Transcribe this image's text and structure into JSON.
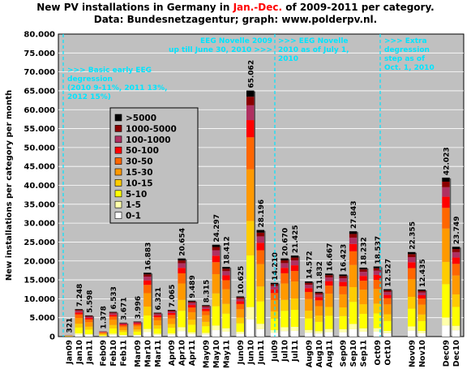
{
  "title": {
    "part1": "New PV installations in Germany in ",
    "part2": "Jan.-Dec.",
    "part3": " of 2009-2011 per category.",
    "line2": "Data: Bundesnetzagentur; graph: www.polderpv.nl."
  },
  "chart_data": {
    "type": "bar",
    "stacked": true,
    "ylabel": "New installations per category per month",
    "ylim": [
      0,
      80000
    ],
    "yticks": [
      "0",
      "5.000",
      "10.000",
      "15.000",
      "20.000",
      "25.000",
      "30.000",
      "35.000",
      "40.000",
      "45.000",
      "50.000",
      "55.000",
      "60.000",
      "65.000",
      "70.000",
      "75.000",
      "80.000"
    ],
    "legend_position": "left-middle",
    "categories_order": [
      "0-1",
      "1-5",
      "5-10",
      "10-15",
      "15-30",
      "30-50",
      "50-100",
      "100-1000",
      "1000-5000",
      ">5000"
    ],
    "legend": [
      ">5000",
      "1000-5000",
      "100-1000",
      "50-100",
      "30-50",
      "15-30",
      "10-15",
      "5-10",
      "1-5",
      "0-1"
    ],
    "colors": {
      ">5000": "#000000",
      "1000-5000": "#8b0000",
      "100-1000": "#b03060",
      "50-100": "#ff0000",
      "30-50": "#ff6600",
      "15-30": "#ff9900",
      "10-15": "#ffcc00",
      "5-10": "#ffff00",
      "1-5": "#ffffaa",
      "0-1": "#ffffff"
    },
    "groups": [
      {
        "month": "Jan",
        "labels": [
          "Jan09",
          "Jan10",
          "Jan11"
        ],
        "totals": [
          321,
          7248,
          5598
        ]
      },
      {
        "month": "Feb",
        "labels": [
          "Feb09",
          "Feb10",
          "Feb11"
        ],
        "totals": [
          1378,
          6533,
          3671
        ]
      },
      {
        "month": "Mar",
        "labels": [
          "Mar09",
          "Mar10",
          "Mar11"
        ],
        "totals": [
          3996,
          16883,
          6321
        ]
      },
      {
        "month": "Apr",
        "labels": [
          "Apr09",
          "Apr10",
          "Apr11"
        ],
        "totals": [
          7065,
          20654,
          9489
        ]
      },
      {
        "month": "May",
        "labels": [
          "May09",
          "May10",
          "May11"
        ],
        "totals": [
          8315,
          24297,
          18412
        ]
      },
      {
        "month": "Jun",
        "labels": [
          "Jun09",
          "Jun10",
          "Jun11"
        ],
        "totals": [
          10625,
          65062,
          28196
        ]
      },
      {
        "month": "Jul",
        "labels": [
          "Jul09",
          "Jul10",
          "Jul11"
        ],
        "totals": [
          14210,
          20670,
          21425
        ]
      },
      {
        "month": "Aug",
        "labels": [
          "Aug09",
          "Aug10",
          "Aug11"
        ],
        "totals": [
          14572,
          11832,
          16667
        ]
      },
      {
        "month": "Sep",
        "labels": [
          "Sep09",
          "Sep10",
          "Sep11"
        ],
        "totals": [
          16423,
          27843,
          18232
        ]
      },
      {
        "month": "Oct",
        "labels": [
          "Oct09",
          "Oct10"
        ],
        "totals": [
          18537,
          12527
        ]
      },
      {
        "month": "Nov",
        "labels": [
          "Nov09",
          "Nov10"
        ],
        "totals": [
          22355,
          12435
        ]
      },
      {
        "month": "Dec",
        "labels": [
          "Dec09",
          "Dec10"
        ],
        "totals": [
          42023,
          23749
        ]
      }
    ],
    "data_labels": {
      "Jan09": "321",
      "Jan10": "7.248",
      "Jan11": "5.598",
      "Feb09": "1.378",
      "Feb10": "6.533",
      "Feb11": "3.671",
      "Mar09": "3.996",
      "Mar10": "16.883",
      "Mar11": "6.321",
      "Apr09": "7.065",
      "Apr10": "20.654",
      "Apr11": "9.489",
      "May09": "8.315",
      "May10": "24.297",
      "May11": "18.412",
      "Jun09": "10.625",
      "Jun10": "65.062",
      "Jun11": "28.196",
      "Jul09": "14.210",
      "Jul10": "20.670",
      "Jul11": "21.425",
      "Aug09": "14.572",
      "Aug10": "11.832",
      "Aug11": "16.667",
      "Sep09": "16.423",
      "Sep10": "27.843",
      "Sep11": "18.232",
      "Oct09": "18.537",
      "Oct10": "12.527",
      "Nov09": "22.355",
      "Nov10": "12.435",
      "Dec09": "42.023",
      "Dec10": "23.749"
    },
    "annotations": [
      {
        "id": "early",
        "lines": [
          ">>> Basic early EEG",
          "degression",
          "(2010 9-11%, 2011 13%,",
          "2012 15%)"
        ]
      },
      {
        "id": "novelle2009",
        "lines": [
          "EEG Novelle 2009",
          "up till June 30, 2010 >>>"
        ]
      },
      {
        "id": "novelle2010",
        "lines": [
          ">>> EEG Novelle",
          "2010 as of July 1,",
          "2010"
        ]
      },
      {
        "id": "extra",
        "lines": [
          ">>> Extra",
          "degression",
          "step as of",
          "Oct. 1, 2010"
        ]
      }
    ]
  }
}
